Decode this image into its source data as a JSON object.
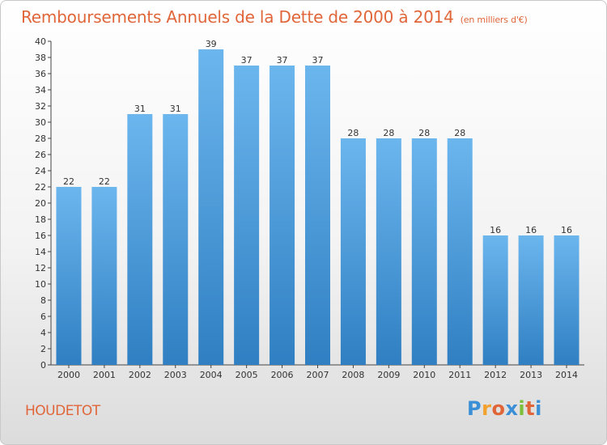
{
  "title": "Remboursements Annuels de la Dette de 2000 à 2014",
  "subtitle": "(en milliers d'€)",
  "commune": "HOUDETOT",
  "logo": {
    "letters": [
      "P",
      "r",
      "o",
      "x",
      "i",
      "t",
      "i"
    ],
    "colors": [
      "#3a8fd6",
      "#f2a12c",
      "#e0663a",
      "#3a8fd6",
      "#7cbf3a",
      "#e0663a",
      "#3a8fd6"
    ]
  },
  "colors": {
    "bar_top": "#6cb6ee",
    "bar_bottom": "#2f7fc2",
    "title": "#e0663a"
  },
  "chart_data": {
    "type": "bar",
    "categories": [
      "2000",
      "2001",
      "2002",
      "2003",
      "2004",
      "2005",
      "2006",
      "2007",
      "2008",
      "2009",
      "2010",
      "2011",
      "2012",
      "2013",
      "2014"
    ],
    "values": [
      22,
      22,
      31,
      31,
      39,
      37,
      37,
      37,
      28,
      28,
      28,
      28,
      16,
      16,
      16
    ],
    "ylim": [
      0,
      40
    ],
    "ytick_step": 2,
    "grid": false,
    "data_labels": true
  }
}
